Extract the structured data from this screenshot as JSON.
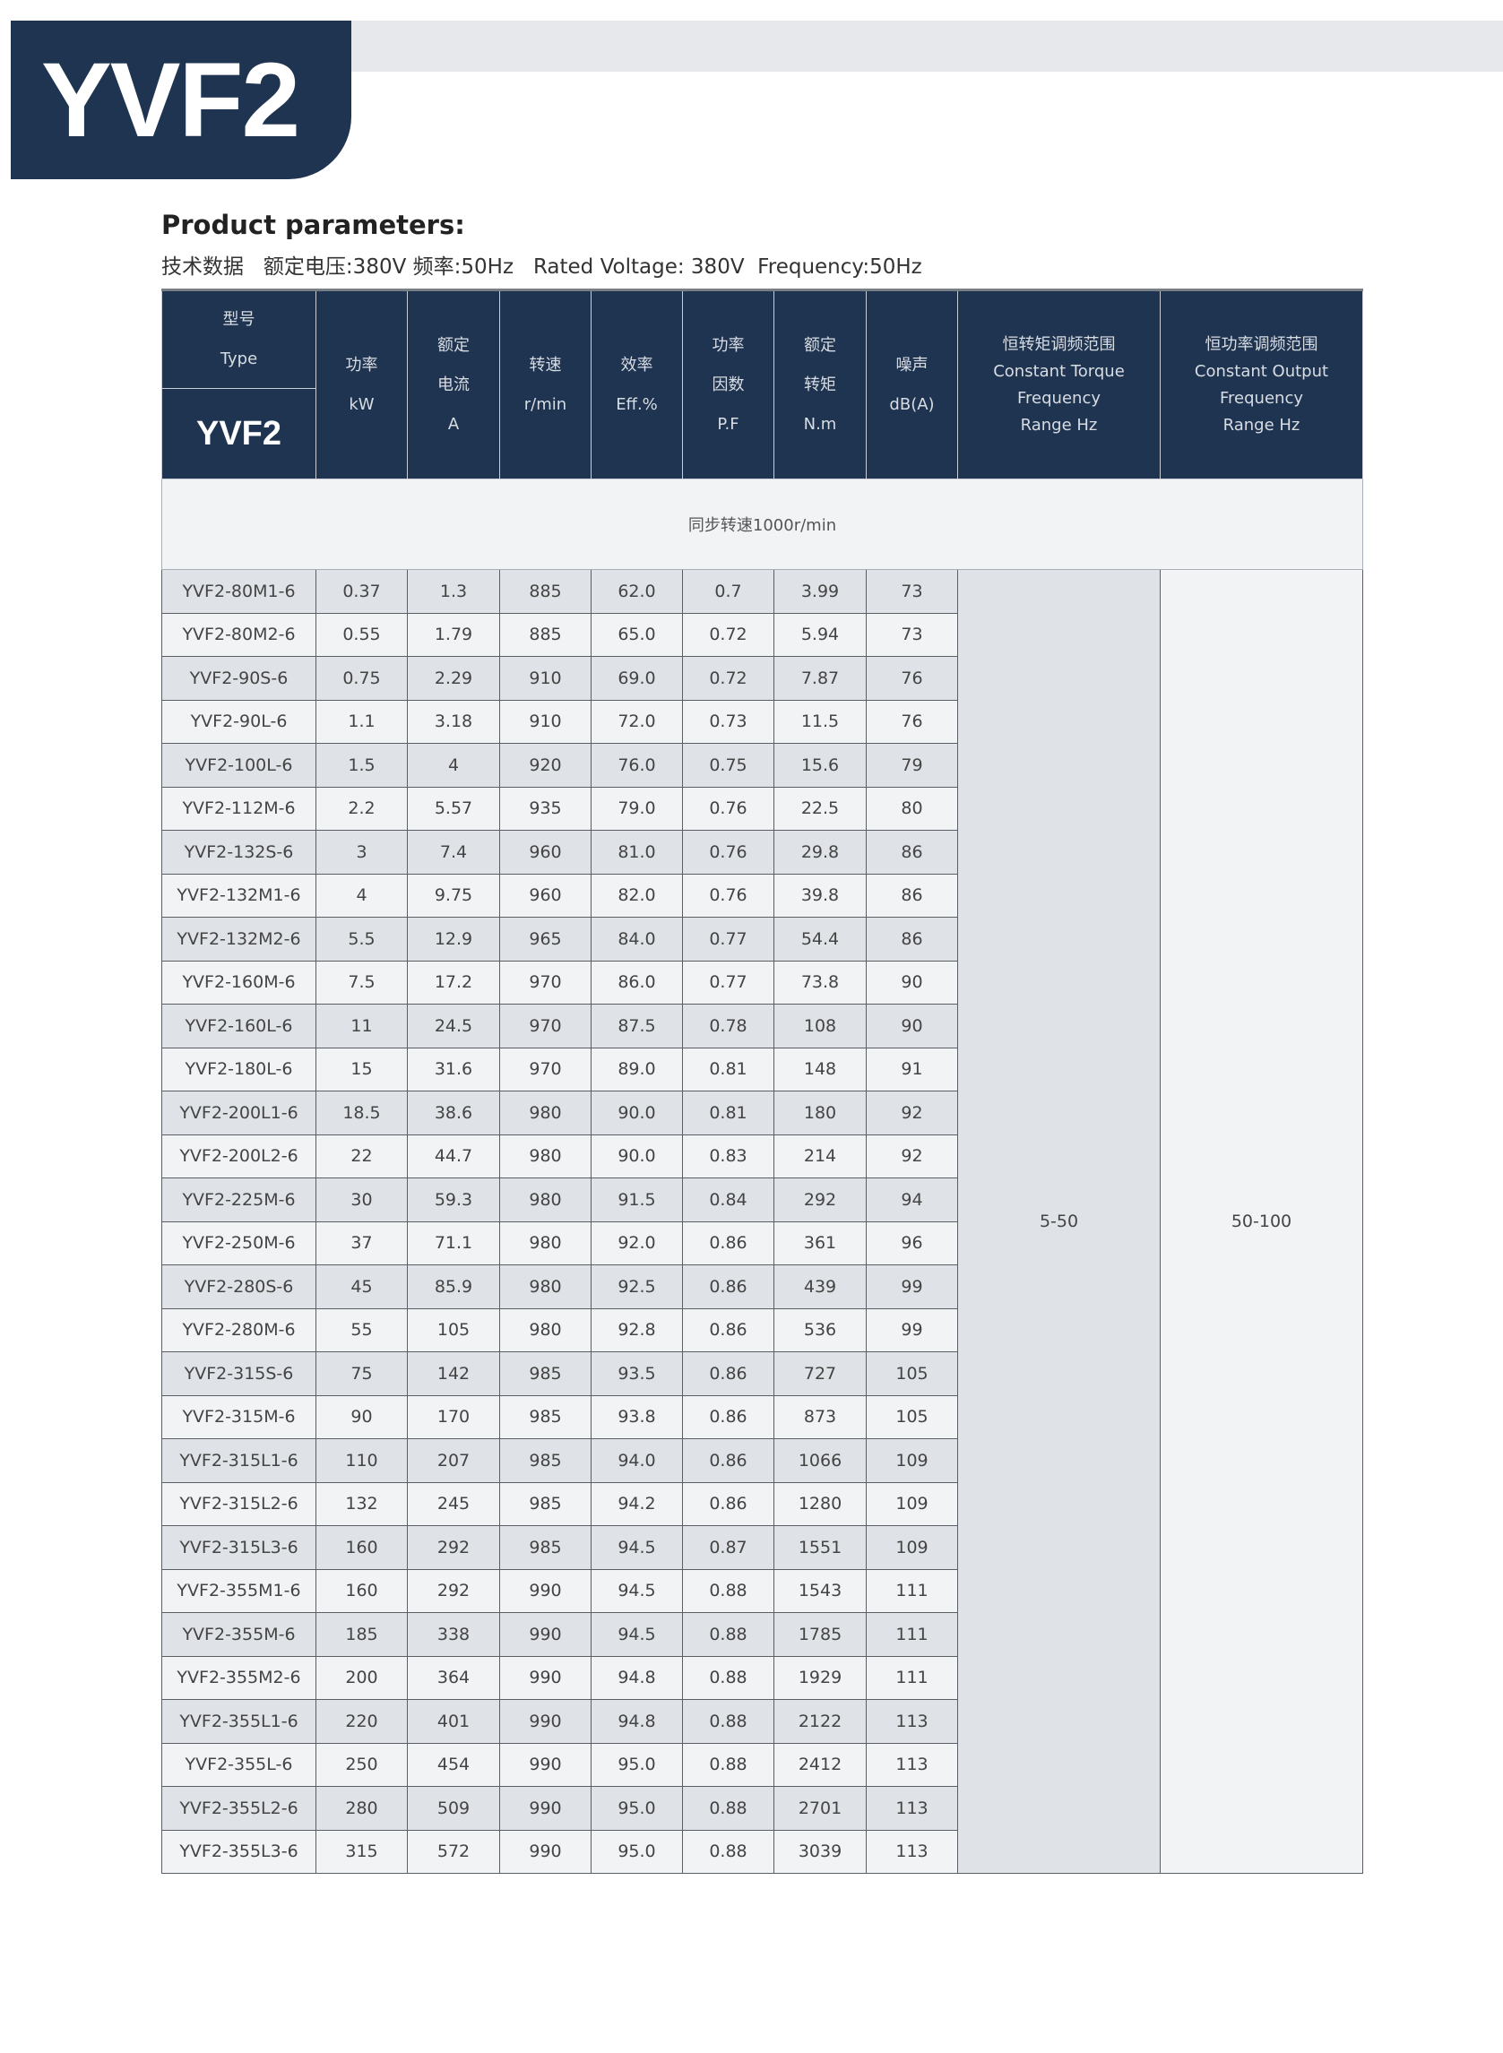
{
  "badge": {
    "title": "YVF2"
  },
  "heading": {
    "title": "Product parameters:",
    "subtitle": "技术数据   额定电压:380V 频率:50Hz   Rated Voltage: 380V  Frequency:50Hz"
  },
  "colors": {
    "navy": "#1f3450",
    "row_dark": "#dfe2e6",
    "row_light": "#f2f3f5"
  },
  "table": {
    "type_header": {
      "cn": "型号",
      "en": "Type",
      "model": "YVF2"
    },
    "headers": [
      [
        "功率",
        "kW"
      ],
      [
        "额定",
        "电流",
        "A"
      ],
      [
        "转速",
        "r/min"
      ],
      [
        "效率",
        "Eff.%"
      ],
      [
        "功率",
        "因数",
        "P.F"
      ],
      [
        "额定",
        "转矩",
        "N.m"
      ],
      [
        "噪声",
        "dB(A)"
      ],
      [
        "恒转矩调频范围",
        "Constant Torque",
        "Frequency",
        "Range Hz"
      ],
      [
        "恒功率调频范围",
        "Constant Output",
        "Frequency",
        "Range Hz"
      ]
    ],
    "group_label": "同步转速1000r/min",
    "constant_torque_range": "5-50",
    "constant_output_range": "50-100",
    "rows": [
      [
        "YVF2-80M1-6",
        "0.37",
        "1.3",
        "885",
        "62.0",
        "0.7",
        "3.99",
        "73"
      ],
      [
        "YVF2-80M2-6",
        "0.55",
        "1.79",
        "885",
        "65.0",
        "0.72",
        "5.94",
        "73"
      ],
      [
        "YVF2-90S-6",
        "0.75",
        "2.29",
        "910",
        "69.0",
        "0.72",
        "7.87",
        "76"
      ],
      [
        "YVF2-90L-6",
        "1.1",
        "3.18",
        "910",
        "72.0",
        "0.73",
        "11.5",
        "76"
      ],
      [
        "YVF2-100L-6",
        "1.5",
        "4",
        "920",
        "76.0",
        "0.75",
        "15.6",
        "79"
      ],
      [
        "YVF2-112M-6",
        "2.2",
        "5.57",
        "935",
        "79.0",
        "0.76",
        "22.5",
        "80"
      ],
      [
        "YVF2-132S-6",
        "3",
        "7.4",
        "960",
        "81.0",
        "0.76",
        "29.8",
        "86"
      ],
      [
        "YVF2-132M1-6",
        "4",
        "9.75",
        "960",
        "82.0",
        "0.76",
        "39.8",
        "86"
      ],
      [
        "YVF2-132M2-6",
        "5.5",
        "12.9",
        "965",
        "84.0",
        "0.77",
        "54.4",
        "86"
      ],
      [
        "YVF2-160M-6",
        "7.5",
        "17.2",
        "970",
        "86.0",
        "0.77",
        "73.8",
        "90"
      ],
      [
        "YVF2-160L-6",
        "11",
        "24.5",
        "970",
        "87.5",
        "0.78",
        "108",
        "90"
      ],
      [
        "YVF2-180L-6",
        "15",
        "31.6",
        "970",
        "89.0",
        "0.81",
        "148",
        "91"
      ],
      [
        "YVF2-200L1-6",
        "18.5",
        "38.6",
        "980",
        "90.0",
        "0.81",
        "180",
        "92"
      ],
      [
        "YVF2-200L2-6",
        "22",
        "44.7",
        "980",
        "90.0",
        "0.83",
        "214",
        "92"
      ],
      [
        "YVF2-225M-6",
        "30",
        "59.3",
        "980",
        "91.5",
        "0.84",
        "292",
        "94"
      ],
      [
        "YVF2-250M-6",
        "37",
        "71.1",
        "980",
        "92.0",
        "0.86",
        "361",
        "96"
      ],
      [
        "YVF2-280S-6",
        "45",
        "85.9",
        "980",
        "92.5",
        "0.86",
        "439",
        "99"
      ],
      [
        "YVF2-280M-6",
        "55",
        "105",
        "980",
        "92.8",
        "0.86",
        "536",
        "99"
      ],
      [
        "YVF2-315S-6",
        "75",
        "142",
        "985",
        "93.5",
        "0.86",
        "727",
        "105"
      ],
      [
        "YVF2-315M-6",
        "90",
        "170",
        "985",
        "93.8",
        "0.86",
        "873",
        "105"
      ],
      [
        "YVF2-315L1-6",
        "110",
        "207",
        "985",
        "94.0",
        "0.86",
        "1066",
        "109"
      ],
      [
        "YVF2-315L2-6",
        "132",
        "245",
        "985",
        "94.2",
        "0.86",
        "1280",
        "109"
      ],
      [
        "YVF2-315L3-6",
        "160",
        "292",
        "985",
        "94.5",
        "0.87",
        "1551",
        "109"
      ],
      [
        "YVF2-355M1-6",
        "160",
        "292",
        "990",
        "94.5",
        "0.88",
        "1543",
        "111"
      ],
      [
        "YVF2-355M-6",
        "185",
        "338",
        "990",
        "94.5",
        "0.88",
        "1785",
        "111"
      ],
      [
        "YVF2-355M2-6",
        "200",
        "364",
        "990",
        "94.8",
        "0.88",
        "1929",
        "111"
      ],
      [
        "YVF2-355L1-6",
        "220",
        "401",
        "990",
        "94.8",
        "0.88",
        "2122",
        "113"
      ],
      [
        "YVF2-355L-6",
        "250",
        "454",
        "990",
        "95.0",
        "0.88",
        "2412",
        "113"
      ],
      [
        "YVF2-355L2-6",
        "280",
        "509",
        "990",
        "95.0",
        "0.88",
        "2701",
        "113"
      ],
      [
        "YVF2-355L3-6",
        "315",
        "572",
        "990",
        "95.0",
        "0.88",
        "3039",
        "113"
      ]
    ]
  }
}
